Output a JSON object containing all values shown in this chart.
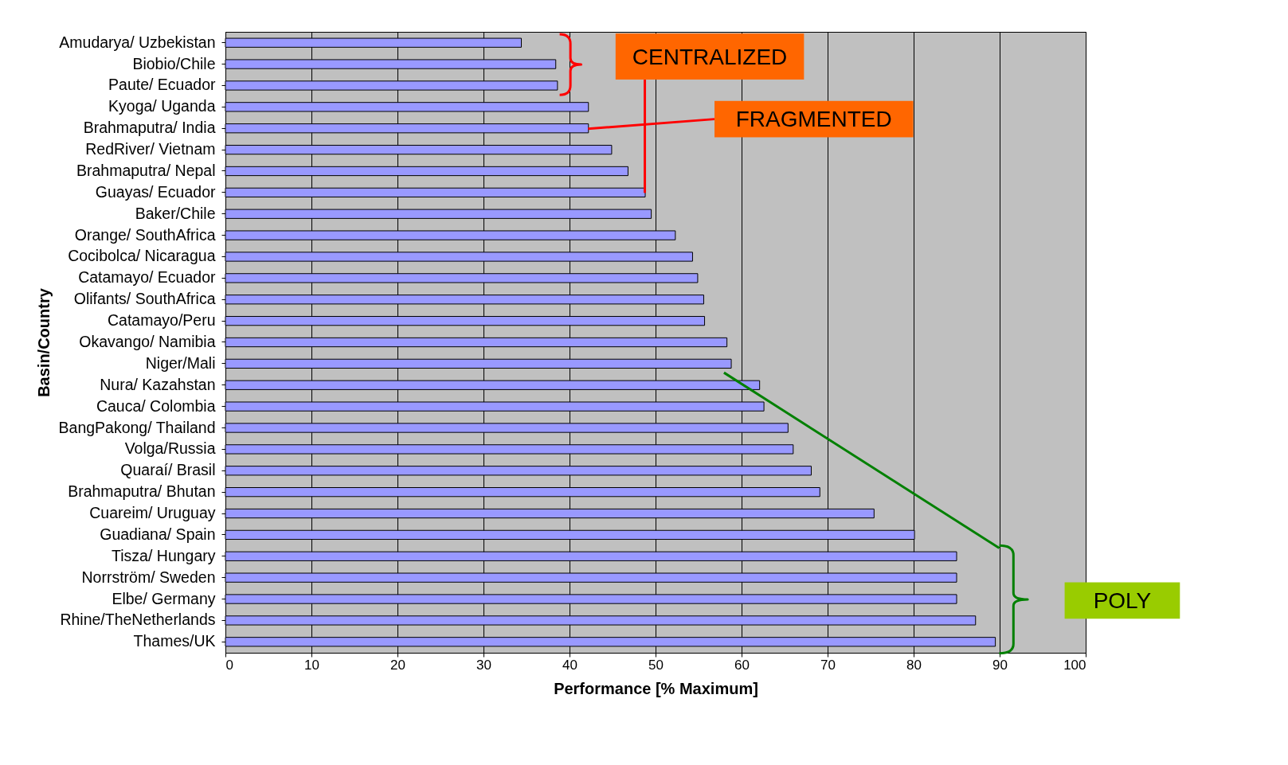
{
  "chart_data": {
    "type": "bar",
    "orientation": "horizontal",
    "xlabel": "Performance [% Maximum]",
    "ylabel": "Basin/Country",
    "categories": [
      "Amudarya/ Uzbekistan",
      "Biobio/Chile",
      "Paute/ Ecuador",
      "Kyoga/ Uganda",
      "Brahmaputra/ India",
      "RedRiver/ Vietnam",
      "Brahmaputra/ Nepal",
      "Guayas/ Ecuador",
      "Baker/Chile",
      "Orange/ SouthAfrica",
      "Cocibolca/ Nicaragua",
      "Catamayo/ Ecuador",
      "Olifants/ SouthAfrica",
      "Catamayo/Peru",
      "Okavango/ Namibia",
      "Niger/Mali",
      "Nura/ Kazahstan",
      "Cauca/ Colombia",
      "BangPakong/ Thailand",
      "Volga/Russia",
      "Quaraí/ Brasil",
      "Brahmaputra/ Bhutan",
      "Cuareim/ Uruguay",
      "Guadiana/ Spain",
      "Tisza/ Hungary",
      "Norrström/ Sweden",
      "Elbe/ Germany",
      "Rhine/TheNetherlands",
      "Thames/UK"
    ],
    "values": [
      34.4,
      38.4,
      38.6,
      42.2,
      42.2,
      44.9,
      46.8,
      48.8,
      49.5,
      52.3,
      54.3,
      54.9,
      55.6,
      55.7,
      58.3,
      58.8,
      62.1,
      62.6,
      65.4,
      66.0,
      68.1,
      69.1,
      75.4,
      80.1,
      85,
      85,
      85,
      87.2,
      89.5
    ],
    "color": "#9999ff",
    "xlim": [
      0,
      100
    ],
    "xticks": [
      0,
      10,
      20,
      30,
      40,
      50,
      60,
      70,
      80,
      90,
      100
    ],
    "grid": "x",
    "annotations": [
      {
        "text": "CENTRALIZED",
        "x": 48.8,
        "y": "Guayas/ Ecuador"
      },
      {
        "text": "FRAGMENTED",
        "x": 42.2,
        "y": "Brahmaputra/ India"
      },
      "POLY"
    ]
  }
}
